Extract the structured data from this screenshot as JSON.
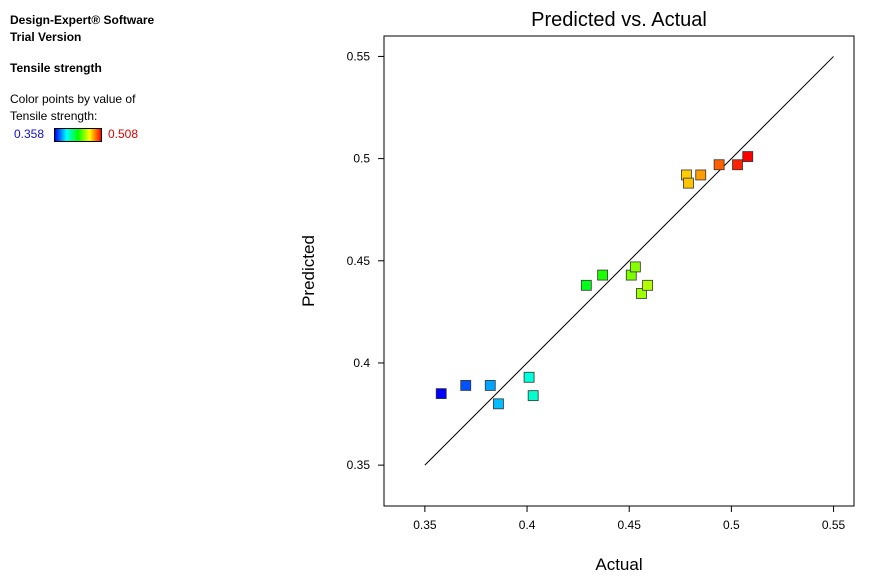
{
  "sidebar": {
    "software": "Design-Expert® Software",
    "version": "Trial Version",
    "response": "Tensile strength",
    "color_note_line1": "Color points by value of",
    "color_note_line2": "Tensile strength:",
    "scale_min": "0.358",
    "scale_max": "0.508",
    "scale_colors": [
      "#0000ff",
      "#00ffff",
      "#00ff00",
      "#ffff00",
      "#ff0000"
    ]
  },
  "chart_data": {
    "type": "scatter",
    "title": "Predicted vs. Actual",
    "xlabel": "Actual",
    "ylabel": "Predicted",
    "xlim": [
      0.33,
      0.56
    ],
    "ylim": [
      0.33,
      0.56
    ],
    "xticks": [
      "0.35",
      "0.4",
      "0.45",
      "0.5",
      "0.55"
    ],
    "yticks": [
      "0.35",
      "0.4",
      "0.45",
      "0.5",
      "0.55"
    ],
    "reference_line": [
      [
        0.35,
        0.35
      ],
      [
        0.55,
        0.55
      ]
    ],
    "grid": false,
    "points": [
      {
        "x": 0.358,
        "y": 0.385
      },
      {
        "x": 0.37,
        "y": 0.389
      },
      {
        "x": 0.382,
        "y": 0.389
      },
      {
        "x": 0.386,
        "y": 0.38
      },
      {
        "x": 0.401,
        "y": 0.393
      },
      {
        "x": 0.403,
        "y": 0.384
      },
      {
        "x": 0.429,
        "y": 0.438
      },
      {
        "x": 0.437,
        "y": 0.443
      },
      {
        "x": 0.451,
        "y": 0.443
      },
      {
        "x": 0.453,
        "y": 0.447
      },
      {
        "x": 0.456,
        "y": 0.434
      },
      {
        "x": 0.459,
        "y": 0.438
      },
      {
        "x": 0.478,
        "y": 0.492
      },
      {
        "x": 0.479,
        "y": 0.488
      },
      {
        "x": 0.485,
        "y": 0.492
      },
      {
        "x": 0.494,
        "y": 0.497
      },
      {
        "x": 0.503,
        "y": 0.497
      },
      {
        "x": 0.508,
        "y": 0.501
      }
    ]
  }
}
